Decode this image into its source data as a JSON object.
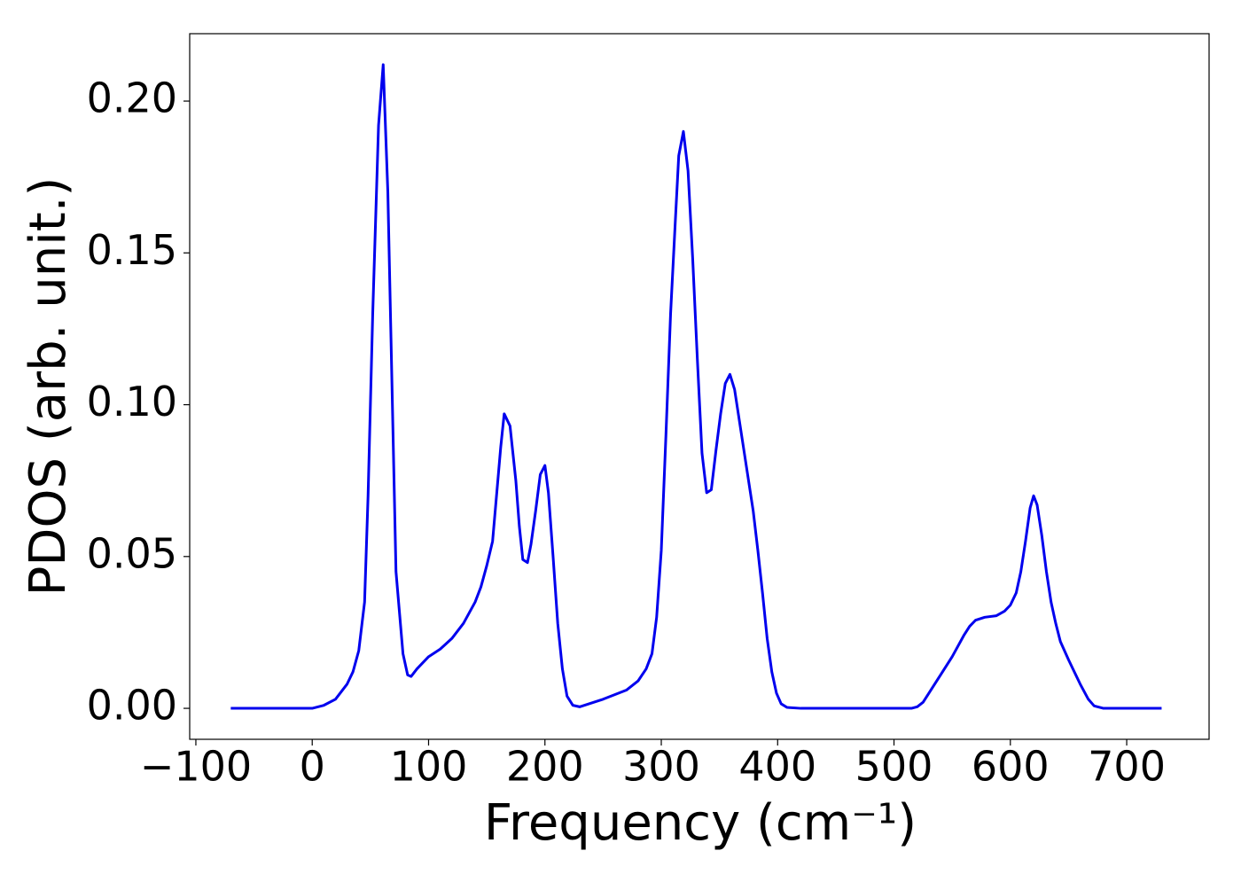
{
  "chart_data": {
    "type": "line",
    "xlabel": "Frequency (cm⁻¹)",
    "ylabel": "PDOS (arb. unit.)",
    "xlim": [
      -105.3,
      770.8
    ],
    "ylim": [
      -0.0102,
      0.2222
    ],
    "xticks": [
      {
        "value": -100,
        "label": "−100"
      },
      0,
      100,
      200,
      300,
      400,
      500,
      600,
      700
    ],
    "yticks": [
      {
        "value": 0,
        "label": "0.00"
      },
      {
        "value": 0.05,
        "label": "0.05"
      },
      {
        "value": 0.1,
        "label": "0.10"
      },
      {
        "value": 0.15,
        "label": "0.15"
      },
      {
        "value": 0.2,
        "label": "0.20"
      }
    ],
    "grid": false,
    "series": [
      {
        "color": "#0000ee",
        "x": [
          -70,
          0,
          10,
          20,
          30,
          35,
          40,
          45,
          48,
          52,
          57,
          61,
          65,
          72,
          78,
          82,
          85,
          90,
          100,
          110,
          120,
          130,
          140,
          145,
          150,
          155,
          162,
          165,
          170,
          175,
          178,
          181,
          185,
          188,
          192,
          196,
          200,
          203,
          207,
          211,
          215,
          219,
          224,
          230,
          250,
          270,
          280,
          287,
          292,
          296,
          300,
          304,
          308,
          312,
          315,
          319,
          323,
          327,
          331,
          335,
          339,
          343,
          347,
          351,
          355,
          359,
          363,
          367,
          371,
          375,
          379,
          383,
          387,
          391,
          395,
          399,
          403,
          408,
          420,
          515,
          520,
          525,
          530,
          540,
          550,
          560,
          565,
          570,
          578,
          588,
          595,
          600,
          605,
          609,
          613,
          617,
          620,
          623,
          627,
          631,
          635,
          639,
          643,
          650,
          660,
          667,
          672,
          680,
          730
        ],
        "values": [
          0,
          0,
          0.001,
          0.003,
          0.008,
          0.012,
          0.019,
          0.035,
          0.07,
          0.13,
          0.192,
          0.212,
          0.17,
          0.045,
          0.018,
          0.011,
          0.0105,
          0.013,
          0.017,
          0.0195,
          0.023,
          0.028,
          0.035,
          0.04,
          0.047,
          0.055,
          0.086,
          0.097,
          0.093,
          0.075,
          0.06,
          0.049,
          0.048,
          0.054,
          0.065,
          0.077,
          0.08,
          0.071,
          0.05,
          0.028,
          0.013,
          0.004,
          0.001,
          0.0005,
          0.003,
          0.006,
          0.009,
          0.013,
          0.018,
          0.03,
          0.052,
          0.09,
          0.13,
          0.16,
          0.182,
          0.19,
          0.177,
          0.148,
          0.115,
          0.084,
          0.071,
          0.072,
          0.085,
          0.097,
          0.107,
          0.11,
          0.105,
          0.095,
          0.085,
          0.075,
          0.065,
          0.052,
          0.038,
          0.023,
          0.012,
          0.005,
          0.0015,
          0.0003,
          0,
          0,
          0.0005,
          0.002,
          0.005,
          0.011,
          0.017,
          0.024,
          0.027,
          0.029,
          0.03,
          0.0305,
          0.032,
          0.034,
          0.038,
          0.045,
          0.055,
          0.066,
          0.07,
          0.067,
          0.057,
          0.045,
          0.035,
          0.028,
          0.022,
          0.016,
          0.008,
          0.003,
          0.0008,
          0,
          0
        ]
      }
    ]
  }
}
